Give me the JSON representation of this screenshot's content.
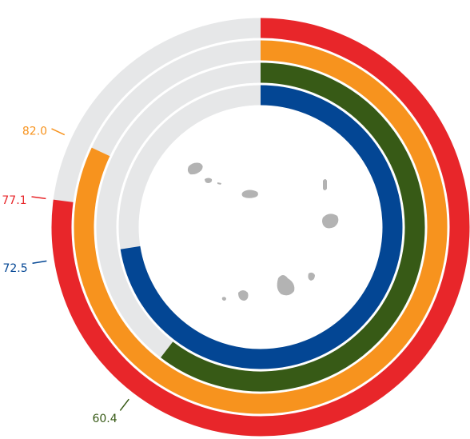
{
  "chart_data": {
    "type": "radial-bar",
    "values": [
      77.1,
      82.0,
      60.4,
      72.5
    ],
    "value_labels": [
      "77.1",
      "82.0",
      "60.4",
      "72.5"
    ],
    "colors": [
      "#e8262a",
      "#f7931e",
      "#375a16",
      "#034694"
    ],
    "ylim": [
      0,
      100
    ],
    "track_color": "#e6e7e8"
  }
}
